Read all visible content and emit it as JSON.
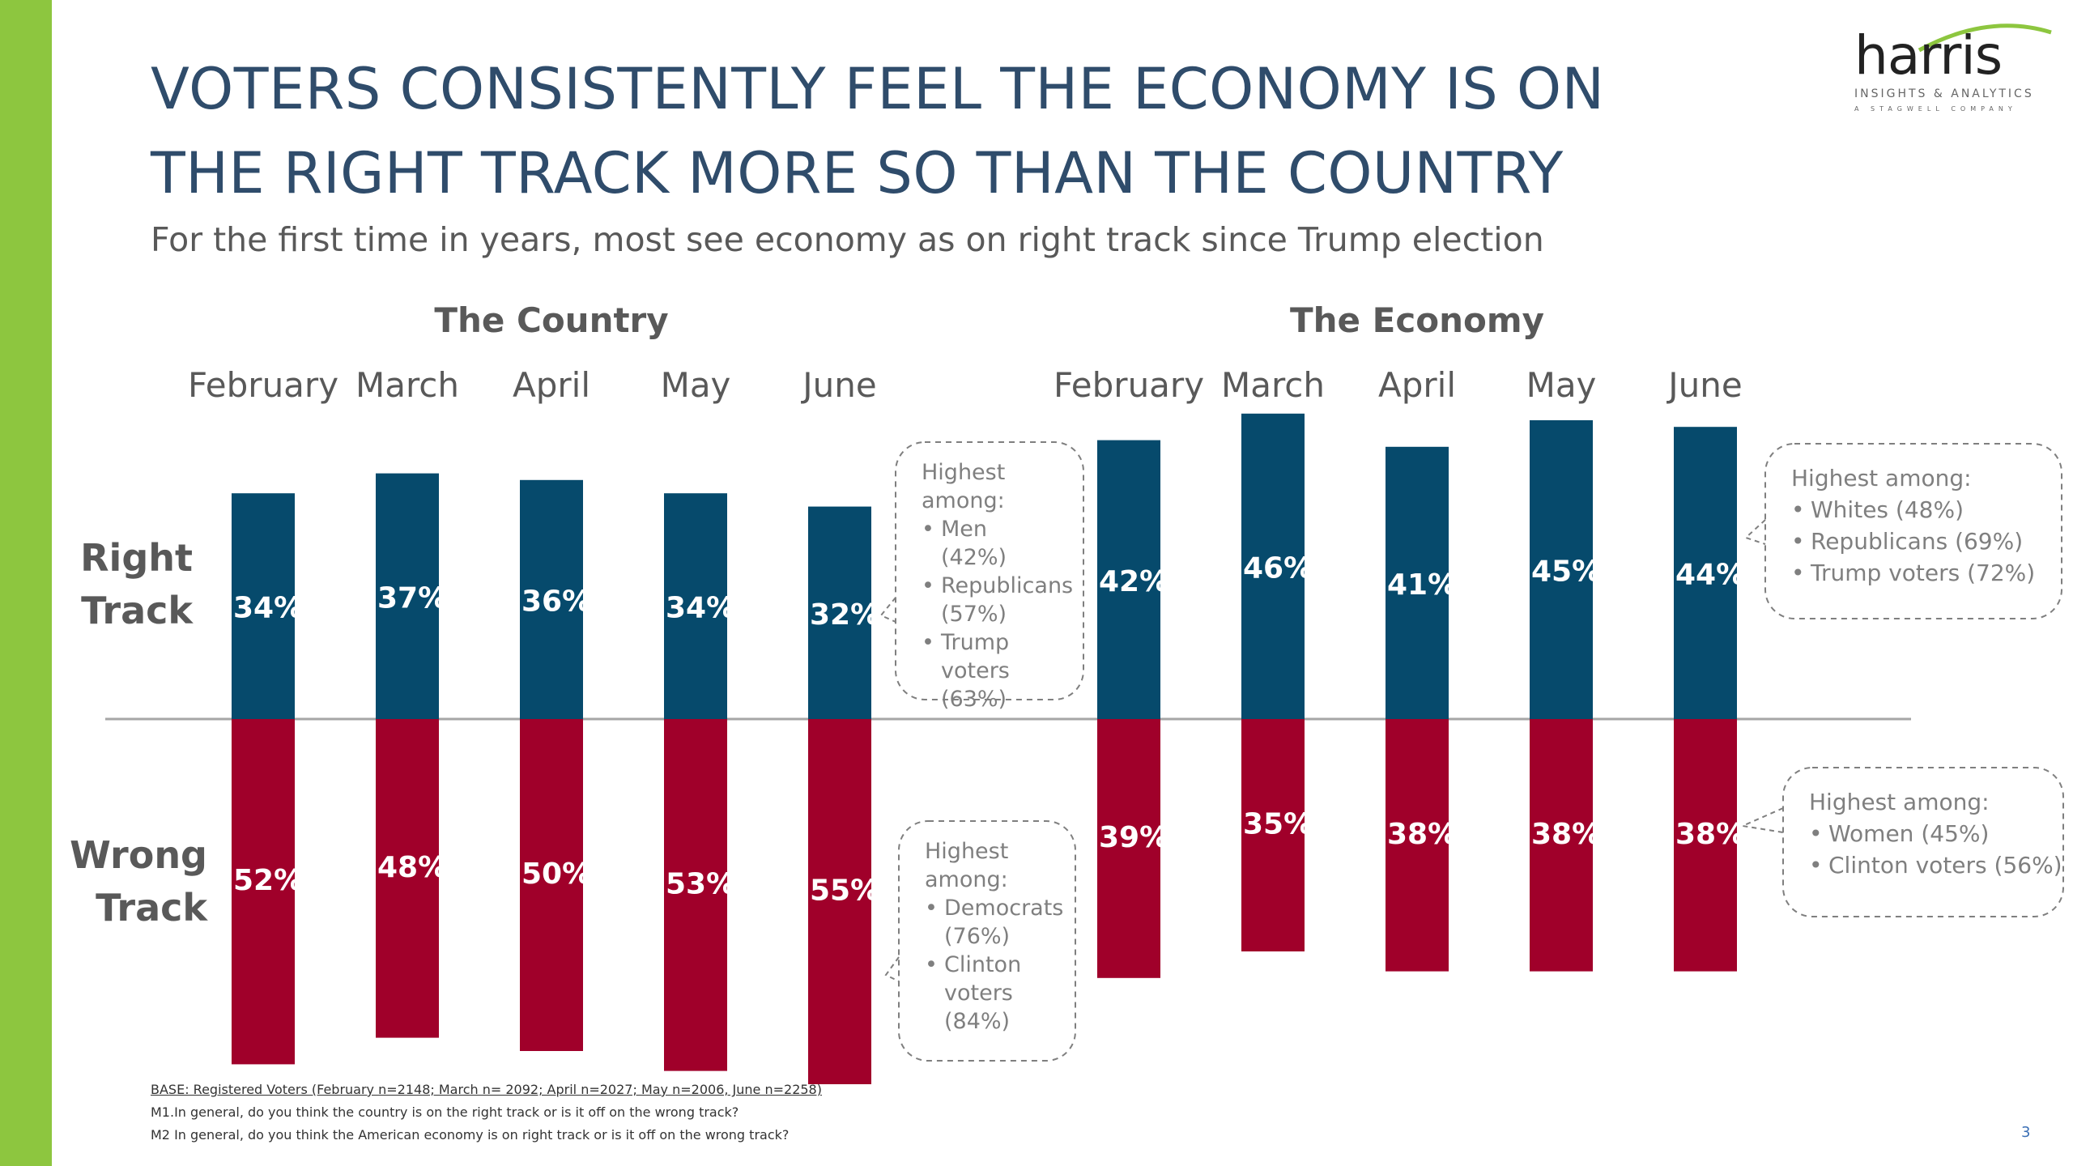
{
  "title": "VOTERS CONSISTENTLY FEEL THE ECONOMY IS ON THE RIGHT TRACK MORE SO THAN THE COUNTRY",
  "subtitle": "For the first time in years, most see economy as on right track since Trump election",
  "logo": {
    "word": "harris",
    "sub1": "INSIGHTS & ANALYTICS",
    "sub2": "A STAGWELL COMPANY"
  },
  "colors": {
    "right_track": "#064a6c",
    "wrong_track": "#a0002a",
    "accent_green": "#8dc63f",
    "title": "#2f4c6b"
  },
  "chart_data": [
    {
      "type": "bar",
      "title": "The Country",
      "categories": [
        "February",
        "March",
        "April",
        "May",
        "June"
      ],
      "series": [
        {
          "name": "Right Track",
          "values": [
            34,
            37,
            36,
            34,
            32
          ]
        },
        {
          "name": "Wrong Track",
          "values": [
            52,
            48,
            50,
            53,
            55
          ]
        }
      ]
    },
    {
      "type": "bar",
      "title": "The Economy",
      "categories": [
        "February",
        "March",
        "April",
        "May",
        "June"
      ],
      "series": [
        {
          "name": "Right Track",
          "values": [
            42,
            46,
            41,
            45,
            44
          ]
        },
        {
          "name": "Wrong Track",
          "values": [
            39,
            35,
            38,
            38,
            38
          ]
        }
      ]
    }
  ],
  "callouts": [
    {
      "heading": "Highest among:",
      "items": [
        "Men (42%)",
        "Republicans (57%)",
        "Trump voters (63%)"
      ]
    },
    {
      "heading": "Highest among:",
      "items": [
        "Democrats (76%)",
        "Clinton voters (84%)"
      ]
    },
    {
      "heading": "Highest among:",
      "items": [
        "Whites (48%)",
        "Republicans (69%)",
        "Trump voters (72%)"
      ]
    },
    {
      "heading": "Highest among:",
      "items": [
        "Women (45%)",
        "Clinton voters (56%)"
      ]
    }
  ],
  "footnotes": {
    "base": "BASE: Registered Voters (February n=2148; March n= 2092; April n=2027; May n=2006, June n=2258)",
    "m1": "M1.In general, do you think the country is on the right track or is it off on the wrong track?",
    "m2": "M2 In general, do you think the American economy is on right track or is it off on the wrong track?"
  },
  "page_number": "3"
}
